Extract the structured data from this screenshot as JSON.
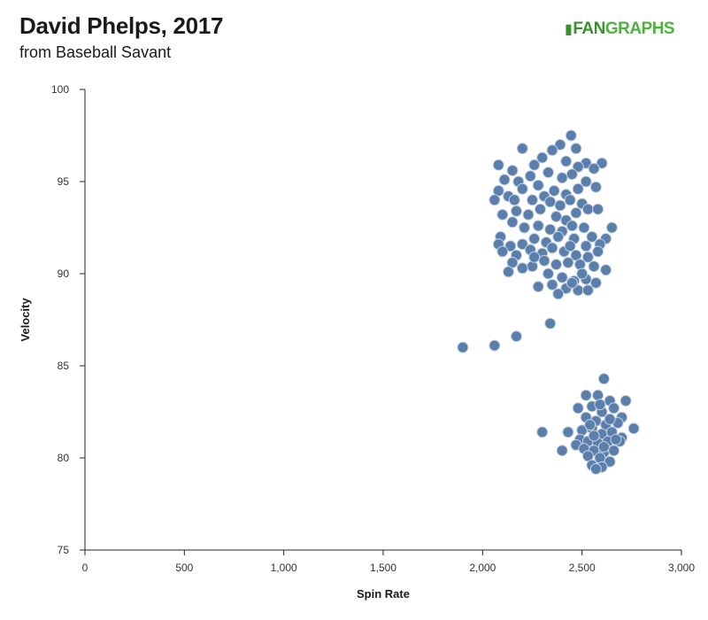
{
  "header": {
    "title": "David Phelps, 2017",
    "subtitle": "from Baseball Savant",
    "logo_text_a": "FAN",
    "logo_text_b": "GRAPHS"
  },
  "colors": {
    "point_fill": "#5b7fad",
    "point_stroke": "#c9d3df",
    "axis": "#222222",
    "logo": "#4db33d"
  },
  "chart_data": {
    "type": "scatter",
    "title": "David Phelps, 2017",
    "subtitle": "from Baseball Savant",
    "xlabel": "Spin Rate",
    "ylabel": "Velocity",
    "xlim": [
      0,
      3000
    ],
    "ylim": [
      75,
      100
    ],
    "x_ticks": [
      "0",
      "500",
      "1,000",
      "1,500",
      "2,000",
      "2,500",
      "3,000"
    ],
    "y_ticks": [
      "75",
      "80",
      "85",
      "90",
      "95",
      "100"
    ],
    "grid": false,
    "series": [
      {
        "points": [
          [
            2445,
            97.5
          ],
          [
            2390,
            97.0
          ],
          [
            2470,
            96.8
          ],
          [
            2350,
            96.7
          ],
          [
            2200,
            96.8
          ],
          [
            2300,
            96.3
          ],
          [
            2520,
            96.0
          ],
          [
            2600,
            96.0
          ],
          [
            2080,
            95.9
          ],
          [
            2150,
            95.6
          ],
          [
            2260,
            95.9
          ],
          [
            2420,
            96.1
          ],
          [
            2480,
            95.8
          ],
          [
            2560,
            95.7
          ],
          [
            2110,
            95.1
          ],
          [
            2180,
            95.0
          ],
          [
            2240,
            95.3
          ],
          [
            2330,
            95.5
          ],
          [
            2400,
            95.2
          ],
          [
            2450,
            95.4
          ],
          [
            2520,
            95.0
          ],
          [
            2570,
            94.7
          ],
          [
            2200,
            94.6
          ],
          [
            2280,
            94.8
          ],
          [
            2310,
            94.2
          ],
          [
            2360,
            94.5
          ],
          [
            2420,
            94.3
          ],
          [
            2480,
            94.6
          ],
          [
            2080,
            94.5
          ],
          [
            2130,
            94.2
          ],
          [
            2060,
            94.0
          ],
          [
            2160,
            94.0
          ],
          [
            2250,
            94.0
          ],
          [
            2340,
            93.9
          ],
          [
            2390,
            93.7
          ],
          [
            2440,
            94.0
          ],
          [
            2500,
            93.8
          ],
          [
            2530,
            93.5
          ],
          [
            2580,
            93.5
          ],
          [
            2470,
            93.3
          ],
          [
            2170,
            93.4
          ],
          [
            2230,
            93.2
          ],
          [
            2290,
            93.5
          ],
          [
            2370,
            93.1
          ],
          [
            2420,
            92.9
          ],
          [
            2100,
            93.2
          ],
          [
            2150,
            92.8
          ],
          [
            2210,
            92.5
          ],
          [
            2280,
            92.6
          ],
          [
            2340,
            92.4
          ],
          [
            2400,
            92.3
          ],
          [
            2450,
            92.6
          ],
          [
            2510,
            92.5
          ],
          [
            2550,
            92.0
          ],
          [
            2650,
            92.5
          ],
          [
            2620,
            91.9
          ],
          [
            2590,
            91.6
          ],
          [
            2520,
            91.5
          ],
          [
            2460,
            91.9
          ],
          [
            2380,
            92.0
          ],
          [
            2320,
            91.7
          ],
          [
            2260,
            91.9
          ],
          [
            2200,
            91.6
          ],
          [
            2140,
            91.5
          ],
          [
            2090,
            92.0
          ],
          [
            2080,
            91.6
          ],
          [
            2100,
            91.2
          ],
          [
            2170,
            91.0
          ],
          [
            2240,
            91.3
          ],
          [
            2300,
            91.1
          ],
          [
            2350,
            91.4
          ],
          [
            2410,
            91.2
          ],
          [
            2470,
            91.0
          ],
          [
            2530,
            90.9
          ],
          [
            2580,
            91.2
          ],
          [
            2620,
            90.2
          ],
          [
            2560,
            90.4
          ],
          [
            2490,
            90.5
          ],
          [
            2430,
            90.6
          ],
          [
            2370,
            90.5
          ],
          [
            2310,
            90.7
          ],
          [
            2250,
            90.4
          ],
          [
            2200,
            90.3
          ],
          [
            2150,
            90.6
          ],
          [
            2130,
            90.1
          ],
          [
            2330,
            90.0
          ],
          [
            2400,
            89.8
          ],
          [
            2460,
            89.6
          ],
          [
            2520,
            89.7
          ],
          [
            2570,
            89.5
          ],
          [
            2280,
            89.3
          ],
          [
            2350,
            89.4
          ],
          [
            2420,
            89.2
          ],
          [
            2480,
            89.1
          ],
          [
            2530,
            89.1
          ],
          [
            2380,
            88.9
          ],
          [
            2450,
            89.5
          ],
          [
            2500,
            90.0
          ],
          [
            2260,
            90.9
          ],
          [
            2440,
            91.5
          ],
          [
            2340,
            87.3
          ],
          [
            2170,
            86.6
          ],
          [
            2060,
            86.1
          ],
          [
            1900,
            86.0
          ],
          [
            2610,
            84.3
          ],
          [
            2520,
            83.4
          ],
          [
            2580,
            83.4
          ],
          [
            2640,
            83.1
          ],
          [
            2720,
            83.1
          ],
          [
            2480,
            82.7
          ],
          [
            2550,
            82.8
          ],
          [
            2600,
            82.5
          ],
          [
            2660,
            82.7
          ],
          [
            2700,
            82.2
          ],
          [
            2520,
            82.2
          ],
          [
            2570,
            82.0
          ],
          [
            2620,
            81.8
          ],
          [
            2680,
            81.9
          ],
          [
            2760,
            81.6
          ],
          [
            2500,
            81.5
          ],
          [
            2550,
            81.6
          ],
          [
            2600,
            81.3
          ],
          [
            2650,
            81.4
          ],
          [
            2700,
            81.1
          ],
          [
            2300,
            81.4
          ],
          [
            2430,
            81.4
          ],
          [
            2490,
            81.0
          ],
          [
            2530,
            80.9
          ],
          [
            2580,
            80.8
          ],
          [
            2630,
            80.9
          ],
          [
            2690,
            80.9
          ],
          [
            2470,
            80.7
          ],
          [
            2510,
            80.5
          ],
          [
            2560,
            80.4
          ],
          [
            2610,
            80.3
          ],
          [
            2660,
            80.4
          ],
          [
            2400,
            80.4
          ],
          [
            2530,
            80.1
          ],
          [
            2590,
            80.0
          ],
          [
            2640,
            79.8
          ],
          [
            2550,
            79.6
          ],
          [
            2600,
            79.5
          ],
          [
            2570,
            79.4
          ],
          [
            2610,
            80.6
          ],
          [
            2560,
            81.2
          ],
          [
            2640,
            82.1
          ],
          [
            2590,
            82.9
          ],
          [
            2540,
            81.8
          ],
          [
            2670,
            81.0
          ]
        ]
      }
    ]
  }
}
